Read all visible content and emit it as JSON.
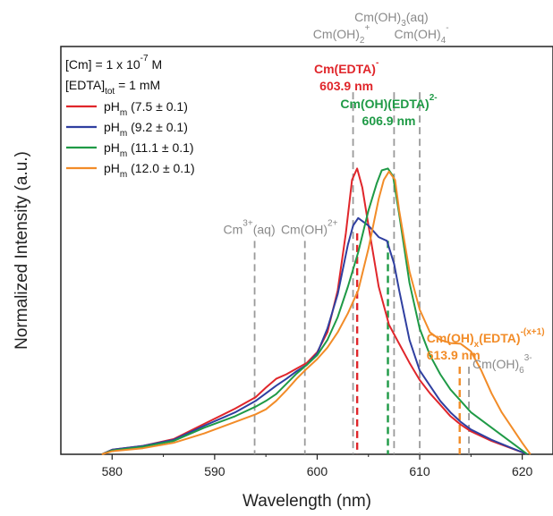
{
  "chart_data": {
    "type": "line",
    "xlabel": "Wavelength (nm)",
    "ylabel": "Normalized Intensity (a.u.)",
    "xlim": [
      575,
      623
    ],
    "ylim": [
      0,
      1.07
    ],
    "xticks": [
      580,
      590,
      600,
      610,
      620
    ],
    "grid": false,
    "legend_position": "top-left",
    "conditions": {
      "cm": {
        "base": "[Cm] = 1 x 10",
        "sup": "-7",
        "tail": " M"
      },
      "edta": {
        "base": "[EDTA]",
        "sub": "tot",
        "tail": " = 1 mM"
      }
    },
    "series": [
      {
        "name": "pHm (7.5 ± 0.1)",
        "label": {
          "base": "pH",
          "sub": "m",
          "tail": " (7.5 ± 0.1)"
        },
        "color": "#e0262b",
        "points": [
          [
            579,
            0.0
          ],
          [
            580,
            0.012
          ],
          [
            583,
            0.022
          ],
          [
            586,
            0.04
          ],
          [
            589,
            0.08
          ],
          [
            592,
            0.12
          ],
          [
            594,
            0.15
          ],
          [
            595,
            0.175
          ],
          [
            596,
            0.198
          ],
          [
            597,
            0.21
          ],
          [
            598,
            0.225
          ],
          [
            599,
            0.24
          ],
          [
            600,
            0.268
          ],
          [
            601,
            0.32
          ],
          [
            602,
            0.43
          ],
          [
            602.8,
            0.58
          ],
          [
            603.4,
            0.72
          ],
          [
            603.9,
            0.75
          ],
          [
            604.4,
            0.7
          ],
          [
            605,
            0.6
          ],
          [
            606,
            0.44
          ],
          [
            607,
            0.34
          ],
          [
            608,
            0.29
          ],
          [
            609,
            0.24
          ],
          [
            610,
            0.195
          ],
          [
            611,
            0.16
          ],
          [
            612,
            0.13
          ],
          [
            613,
            0.1
          ],
          [
            614,
            0.078
          ],
          [
            615,
            0.06
          ],
          [
            617,
            0.035
          ],
          [
            619,
            0.015
          ],
          [
            620.5,
            0.0
          ]
        ]
      },
      {
        "name": "pHm (9.2 ± 0.1)",
        "label": {
          "base": "pH",
          "sub": "m",
          "tail": " (9.2 ± 0.1)"
        },
        "color": "#2f3fa0",
        "points": [
          [
            579,
            0.0
          ],
          [
            580,
            0.012
          ],
          [
            583,
            0.022
          ],
          [
            586,
            0.038
          ],
          [
            589,
            0.075
          ],
          [
            592,
            0.11
          ],
          [
            594,
            0.14
          ],
          [
            595,
            0.16
          ],
          [
            596,
            0.18
          ],
          [
            597,
            0.198
          ],
          [
            598,
            0.218
          ],
          [
            599,
            0.235
          ],
          [
            600,
            0.265
          ],
          [
            601,
            0.33
          ],
          [
            602,
            0.42
          ],
          [
            603,
            0.55
          ],
          [
            603.5,
            0.6
          ],
          [
            604,
            0.62
          ],
          [
            605,
            0.6
          ],
          [
            606,
            0.57
          ],
          [
            606.8,
            0.56
          ],
          [
            607.5,
            0.5
          ],
          [
            608,
            0.43
          ],
          [
            609,
            0.3
          ],
          [
            610,
            0.22
          ],
          [
            611,
            0.18
          ],
          [
            612,
            0.14
          ],
          [
            613,
            0.11
          ],
          [
            614,
            0.085
          ],
          [
            615,
            0.065
          ],
          [
            617,
            0.038
          ],
          [
            619,
            0.016
          ],
          [
            620.5,
            0.0
          ]
        ]
      },
      {
        "name": "pHm (11.1 ± 0.1)",
        "label": {
          "base": "pH",
          "sub": "m",
          "tail": " (11.1 ± 0.1)"
        },
        "color": "#1f9a46",
        "points": [
          [
            579,
            0.0
          ],
          [
            580,
            0.01
          ],
          [
            583,
            0.02
          ],
          [
            586,
            0.035
          ],
          [
            589,
            0.07
          ],
          [
            592,
            0.1
          ],
          [
            594,
            0.125
          ],
          [
            595,
            0.14
          ],
          [
            596,
            0.158
          ],
          [
            597,
            0.185
          ],
          [
            598,
            0.212
          ],
          [
            599,
            0.235
          ],
          [
            600,
            0.26
          ],
          [
            601,
            0.3
          ],
          [
            602,
            0.36
          ],
          [
            603,
            0.44
          ],
          [
            604,
            0.53
          ],
          [
            605,
            0.64
          ],
          [
            605.8,
            0.71
          ],
          [
            606.3,
            0.745
          ],
          [
            606.9,
            0.75
          ],
          [
            607.4,
            0.73
          ],
          [
            608,
            0.63
          ],
          [
            609,
            0.45
          ],
          [
            610,
            0.33
          ],
          [
            611,
            0.26
          ],
          [
            612,
            0.21
          ],
          [
            613,
            0.17
          ],
          [
            614,
            0.14
          ],
          [
            615,
            0.11
          ],
          [
            617,
            0.07
          ],
          [
            619,
            0.03
          ],
          [
            620.5,
            0.0
          ]
        ]
      },
      {
        "name": "pHm (12.0 ± 0.1)",
        "label": {
          "base": "pH",
          "sub": "m",
          "tail": " (12.0 ± 0.1)"
        },
        "color": "#f28c28",
        "points": [
          [
            579,
            0.0
          ],
          [
            580,
            0.008
          ],
          [
            583,
            0.016
          ],
          [
            586,
            0.03
          ],
          [
            589,
            0.055
          ],
          [
            592,
            0.085
          ],
          [
            594,
            0.105
          ],
          [
            595,
            0.118
          ],
          [
            596,
            0.14
          ],
          [
            597,
            0.168
          ],
          [
            598,
            0.198
          ],
          [
            599,
            0.225
          ],
          [
            600,
            0.25
          ],
          [
            601,
            0.28
          ],
          [
            602,
            0.32
          ],
          [
            603,
            0.37
          ],
          [
            604,
            0.43
          ],
          [
            605,
            0.54
          ],
          [
            606,
            0.67
          ],
          [
            606.5,
            0.72
          ],
          [
            607,
            0.742
          ],
          [
            607.6,
            0.72
          ],
          [
            608,
            0.64
          ],
          [
            609,
            0.48
          ],
          [
            610,
            0.38
          ],
          [
            611,
            0.32
          ],
          [
            612,
            0.3
          ],
          [
            613,
            0.292
          ],
          [
            614,
            0.29
          ],
          [
            615,
            0.27
          ],
          [
            616,
            0.22
          ],
          [
            617,
            0.16
          ],
          [
            618,
            0.11
          ],
          [
            619,
            0.07
          ],
          [
            620,
            0.03
          ],
          [
            620.8,
            0.0
          ]
        ]
      }
    ],
    "reference_lines": [
      {
        "id": "cm3aq",
        "x": 593.9,
        "y_top": 0.56,
        "color": "#9a9a9a",
        "label": {
          "base": "Cm",
          "sup": "3+",
          "tail": "(aq)"
        }
      },
      {
        "id": "cmoh",
        "x": 598.8,
        "y_top": 0.56,
        "color": "#9a9a9a",
        "label": {
          "base": "Cm(OH)",
          "sup": "2+",
          "tail": ""
        }
      },
      {
        "id": "cmoh2",
        "x": 603.5,
        "y_top": 0.95,
        "color": "#9a9a9a",
        "label": {
          "base": "Cm(OH)",
          "sub": "2",
          "sup": "+",
          "tail": ""
        }
      },
      {
        "id": "cmoh3",
        "x": 607.5,
        "y_top": 0.95,
        "color": "#9a9a9a",
        "label": {
          "base": "Cm(OH)",
          "sub": "3",
          "tail": "(aq)"
        }
      },
      {
        "id": "cmoh4",
        "x": 610.0,
        "y_top": 0.95,
        "color": "#9a9a9a",
        "label": {
          "base": "Cm(OH)",
          "sub": "4",
          "sup": "-",
          "tail": ""
        }
      },
      {
        "id": "cmoh6",
        "x": 614.8,
        "y_top": 0.23,
        "color": "#9a9a9a",
        "label": {
          "base": "Cm(OH)",
          "sub": "6",
          "sup": "3-",
          "tail": ""
        }
      },
      {
        "id": "edta",
        "x": 603.9,
        "y_top": 0.58,
        "color": "#e0262b",
        "bold": true,
        "label": {
          "base": "Cm(EDTA)",
          "sup": "-",
          "tail": ""
        },
        "value": "603.9 nm"
      },
      {
        "id": "ohedta",
        "x": 606.9,
        "y_top": 0.56,
        "color": "#1f9a46",
        "bold": true,
        "label": {
          "base": "Cm(OH)(EDTA)",
          "sup": "2-",
          "tail": ""
        },
        "value": "606.9 nm"
      },
      {
        "id": "ohxedta",
        "x": 613.9,
        "y_top": 0.23,
        "color": "#f28c28",
        "bold": true,
        "label": {
          "base": "Cm(OH)",
          "sub": "x",
          "tail": "(EDTA)",
          "sup2": "-(x+1)"
        },
        "value": "613.9 nm"
      }
    ]
  }
}
